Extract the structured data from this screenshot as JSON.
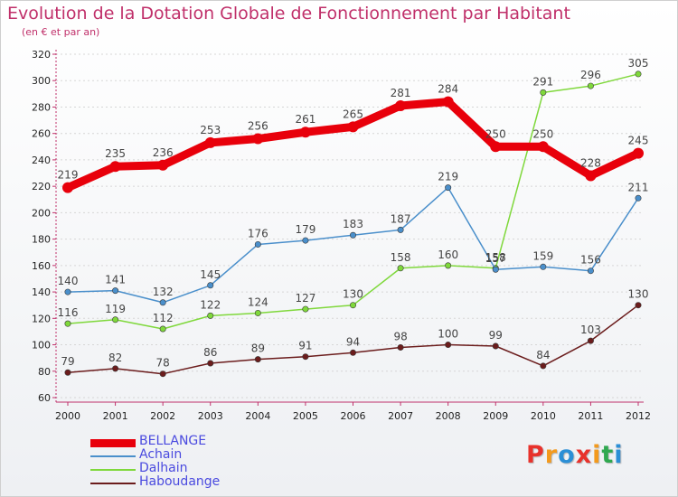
{
  "title": "Evolution de la Dotation Globale de Fonctionnement par Habitant",
  "subtitle": "(en € et par an)",
  "logo": {
    "letters": [
      "P",
      "r",
      "o",
      "x",
      "i",
      "t",
      "i"
    ],
    "colors": [
      "#e8322c",
      "#f39a1d",
      "#2b8fd6",
      "#e8322c",
      "#f39a1d",
      "#2fa84f",
      "#2b8fd6"
    ]
  },
  "chart_data": {
    "type": "line",
    "x": [
      "2000",
      "2001",
      "2002",
      "2003",
      "2004",
      "2005",
      "2006",
      "2007",
      "2008",
      "2009",
      "2010",
      "2011",
      "2012"
    ],
    "ylim": [
      60,
      320
    ],
    "yticks": [
      "60",
      "80",
      "100",
      "120",
      "140",
      "160",
      "180",
      "200",
      "220",
      "240",
      "260",
      "280",
      "300",
      "320"
    ],
    "grid": "horizontal",
    "legend_position": "bottom-left",
    "series": [
      {
        "name": "BELLANGE",
        "color": "#e8000b",
        "values": [
          219,
          235,
          236,
          253,
          256,
          261,
          265,
          281,
          284,
          250,
          250,
          228,
          245
        ],
        "labels": [
          "219",
          "235",
          "236",
          "253",
          "256",
          "261",
          "265",
          "281",
          "284",
          "250",
          "250",
          "228",
          "245"
        ],
        "emphasis": "bold"
      },
      {
        "name": "Achain",
        "color": "#4a8fcb",
        "values": [
          140,
          141,
          132,
          145,
          176,
          179,
          183,
          187,
          219,
          157,
          159,
          156,
          211
        ],
        "labels": [
          "140",
          "141",
          "132",
          "145",
          "176",
          "179",
          "183",
          "187",
          "219",
          "157",
          "159",
          "156",
          "211"
        ],
        "emphasis": "normal"
      },
      {
        "name": "Dalhain",
        "color": "#7fd83b",
        "values": [
          116,
          119,
          112,
          122,
          124,
          127,
          130,
          158,
          160,
          158,
          291,
          296,
          305
        ],
        "labels": [
          "116",
          "119",
          "112",
          "122",
          "124",
          "127",
          "130",
          "158",
          "160",
          "158",
          "291",
          "296",
          "305"
        ],
        "emphasis": "normal"
      },
      {
        "name": "Haboudange",
        "color": "#6b1c1c",
        "values": [
          79,
          82,
          78,
          86,
          89,
          91,
          94,
          98,
          100,
          99,
          84,
          103,
          130
        ],
        "labels": [
          "79",
          "82",
          "78",
          "86",
          "89",
          "91",
          "94",
          "98",
          "100",
          "99",
          "84",
          "103",
          "130"
        ],
        "emphasis": "normal"
      }
    ]
  }
}
